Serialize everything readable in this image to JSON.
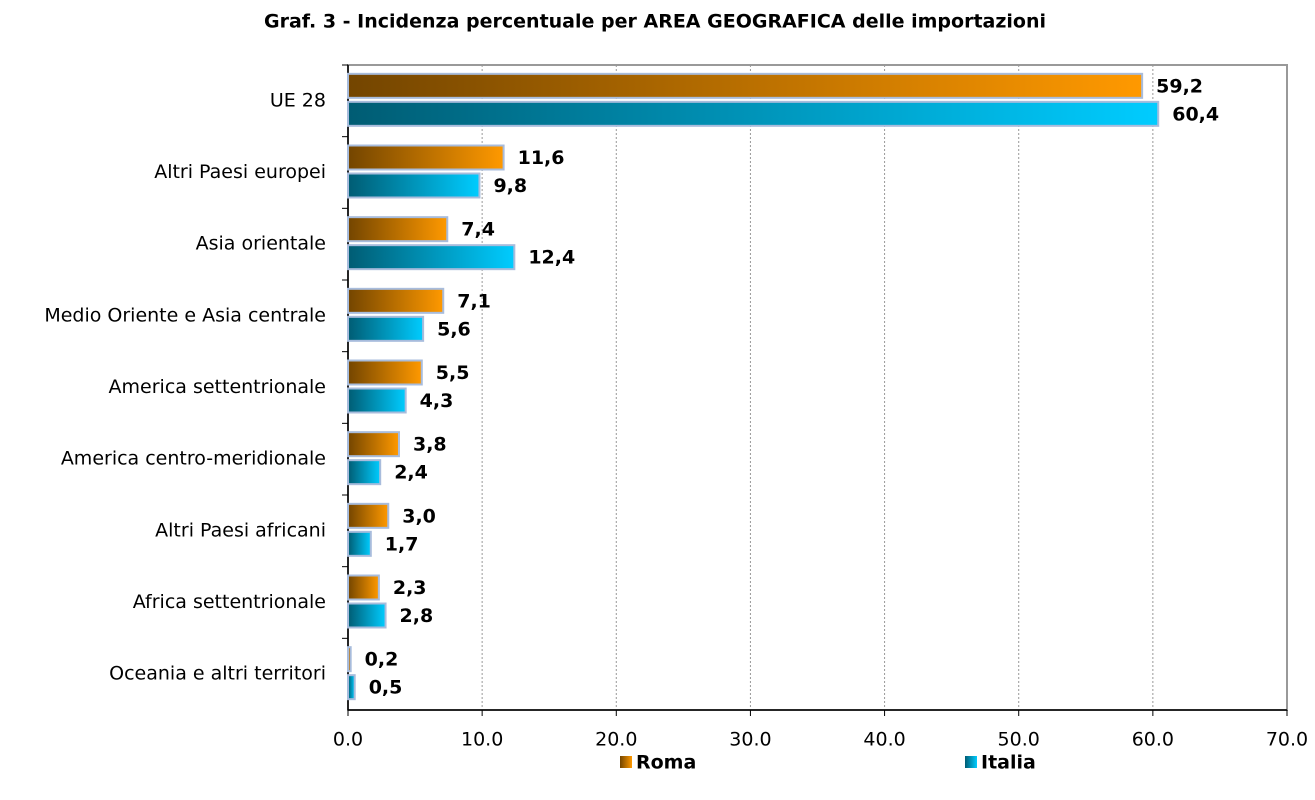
{
  "chart_data": {
    "type": "hbar",
    "title": "Graf. 3 - Incidenza percentuale per AREA GEOGRAFICA delle importazioni",
    "categories": [
      "UE 28",
      "Altri Paesi europei",
      "Asia orientale",
      "Medio Oriente e Asia centrale",
      "America settentrionale",
      "America centro-meridionale",
      "Altri Paesi africani",
      "Africa settentrionale",
      "Oceania e altri territori"
    ],
    "series": [
      {
        "name": "Roma",
        "color": "#ff9900",
        "values": [
          59.2,
          11.6,
          7.4,
          7.1,
          5.5,
          3.8,
          3.0,
          2.3,
          0.2
        ],
        "value_labels": [
          "59,2",
          "11,6",
          "7,4",
          "7,1",
          "5,5",
          "3,8",
          "3,0",
          "2,3",
          "0,2"
        ]
      },
      {
        "name": "Italia",
        "color": "#00ccff",
        "values": [
          60.4,
          9.8,
          12.4,
          5.6,
          4.3,
          2.4,
          1.7,
          2.8,
          0.5
        ],
        "value_labels": [
          "60,4",
          "9,8",
          "12,4",
          "5,6",
          "4,3",
          "2,4",
          "1,7",
          "2,8",
          "0,5"
        ]
      }
    ],
    "xlim": [
      0,
      70
    ],
    "xticks": [
      {
        "value": 0,
        "label": "0.0"
      },
      {
        "value": 10,
        "label": "10.0"
      },
      {
        "value": 20,
        "label": "20.0"
      },
      {
        "value": 30,
        "label": "30.0"
      },
      {
        "value": 40,
        "label": "40.0"
      },
      {
        "value": 50,
        "label": "50.0"
      },
      {
        "value": 60,
        "label": "60.0"
      },
      {
        "value": 70,
        "label": "70.0"
      }
    ],
    "grid": true,
    "legend": "bottom"
  }
}
